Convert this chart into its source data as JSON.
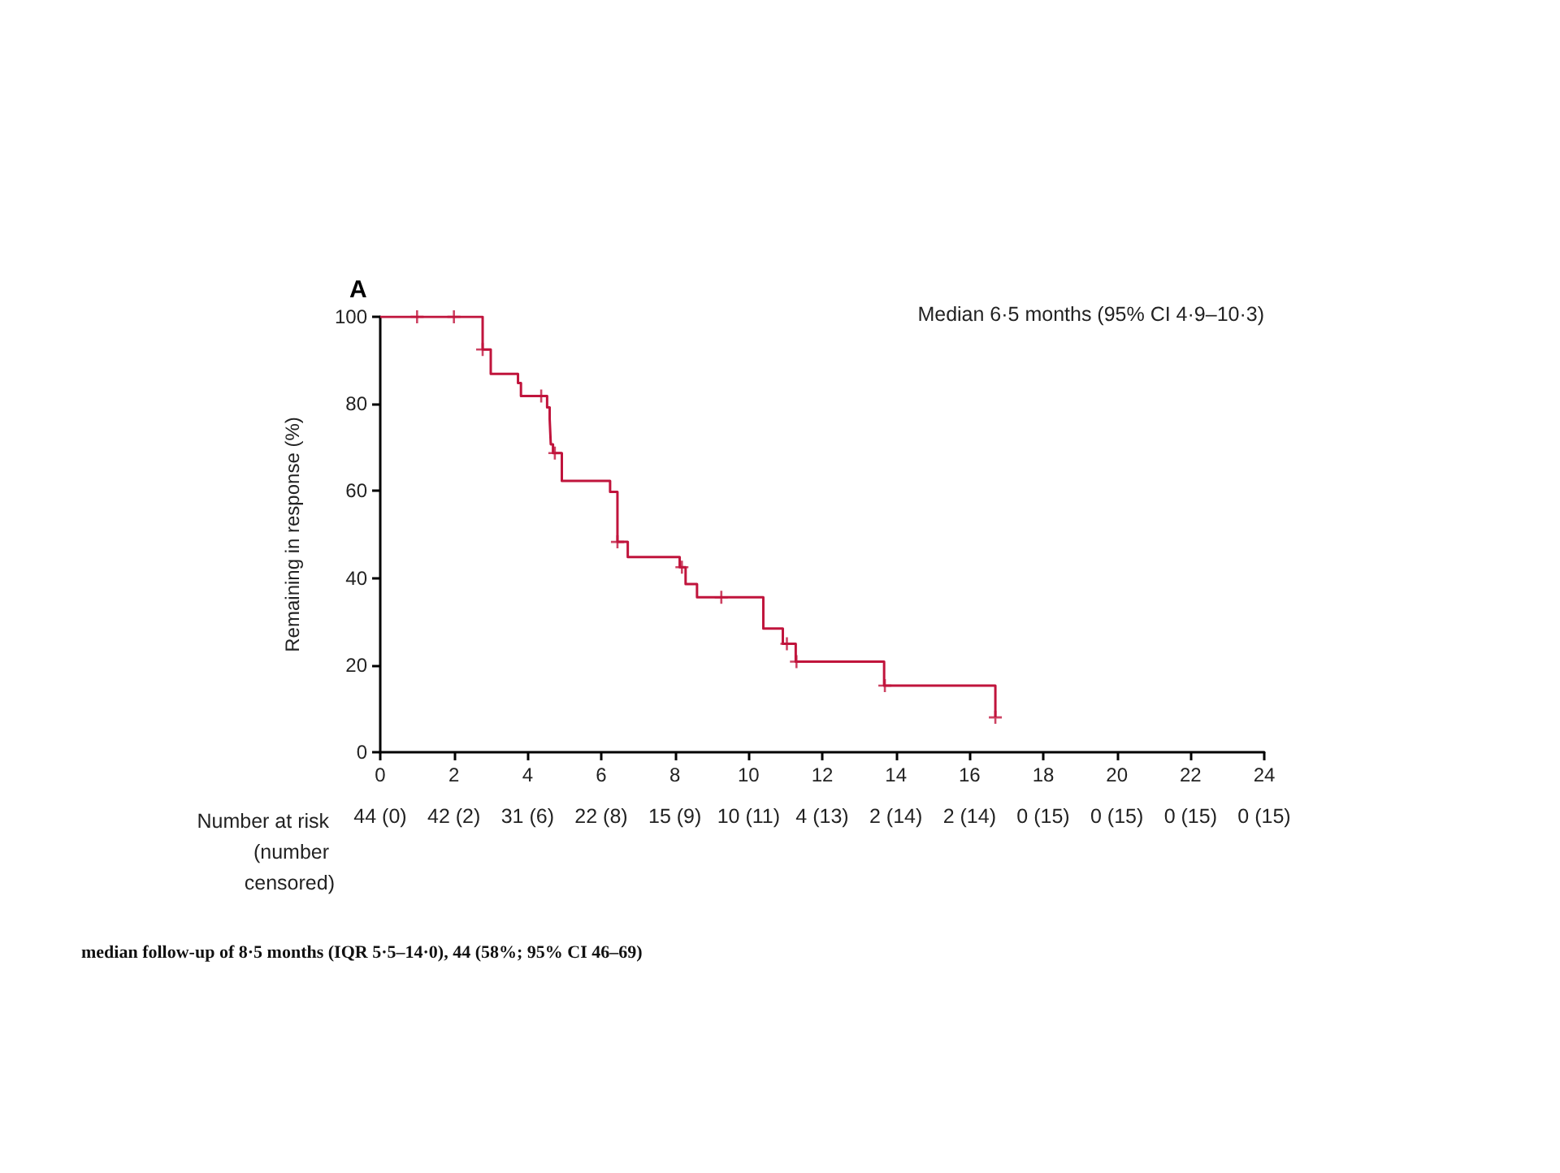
{
  "chart_data": {
    "type": "step",
    "title": "A",
    "ylabel": "Remaining in response (%)",
    "xlim": [
      0,
      24
    ],
    "xticks": [
      0,
      2,
      4,
      6,
      8,
      10,
      12,
      14,
      16,
      18,
      20,
      22,
      24
    ],
    "ylim": [
      0,
      100
    ],
    "yticks": [
      0,
      20,
      40,
      60,
      80,
      100
    ],
    "grid": false,
    "series": [
      {
        "color": "#c0143c",
        "marker": "none",
        "x": [
          0,
          2.78,
          3.0,
          3.74,
          3.82,
          4.53,
          4.6,
          4.63,
          4.69,
          4.93,
          6.24,
          6.44,
          6.72,
          8.13,
          8.29,
          8.6,
          10.4,
          10.93,
          11.28,
          13.68,
          16.7
        ],
        "values": [
          100,
          92.5,
          86.9,
          84.8,
          81.8,
          79.2,
          76.5,
          70.7,
          68.7,
          62.3,
          59.8,
          48.3,
          44.8,
          42.5,
          38.6,
          35.6,
          28.4,
          24.9,
          20.8,
          15.3,
          8.0
        ]
      },
      {
        "type": "scatter",
        "color": "#c0143c",
        "marker": "cross",
        "x": [
          1,
          2,
          2.78,
          4.37,
          4.74,
          6.44,
          8.19,
          9.26,
          11.04,
          11.3,
          13.7,
          16.7
        ],
        "values": [
          100,
          100,
          92.5,
          81.8,
          68.7,
          48.3,
          42.5,
          35.6,
          24.9,
          20.8,
          15.3,
          8.0
        ]
      }
    ],
    "annotations": [
      "Median 6·5 months (95% CI 4·9–10·3)",
      "Number at risk (number censored)",
      "median follow-up of 8·5 months (IQR 5·5–14·0), 44 (58%; 95% CI 46–69)",
      "44 (0)",
      "42 (2)",
      "31 (6)",
      "22 (8)",
      "15 (9)",
      "10 (11)",
      "4 (13)",
      "2 (14)",
      "2 (14)",
      "0 (15)",
      "0 (15)",
      "0 (15)",
      "0 (15)"
    ]
  }
}
